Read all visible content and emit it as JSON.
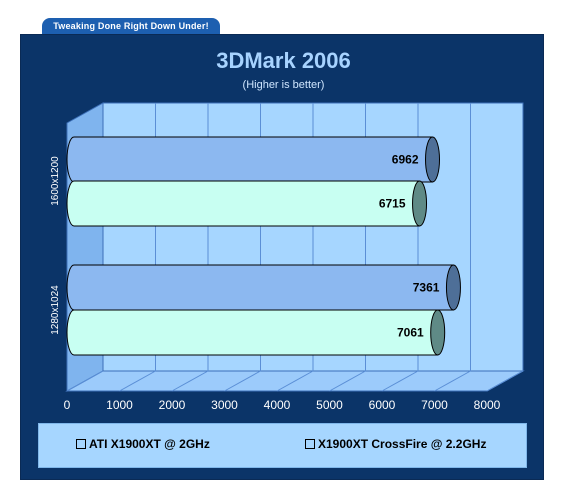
{
  "header": {
    "tab_label": "Tweaking Done Right Down Under!"
  },
  "colors": {
    "panel": "#0b3468",
    "plot_wall": "#a6d6ff",
    "series1": "#8cb8f0",
    "series2": "#c8fff2",
    "gridline": "#5b8fd6"
  },
  "chart_data": {
    "type": "bar",
    "orientation": "horizontal",
    "title": "3DMark 2006",
    "subtitle": "(Higher is better)",
    "categories": [
      "1600x1200",
      "1280x1024"
    ],
    "series": [
      {
        "name": "ATI X1900XT @ 2GHz",
        "values": [
          6962,
          7361
        ]
      },
      {
        "name": "X1900XT CrossFire @ 2.2GHz",
        "values": [
          6715,
          7061
        ]
      }
    ],
    "xlim": [
      0,
      8000
    ],
    "xticks": [
      "0",
      "1000",
      "2000",
      "3000",
      "4000",
      "5000",
      "6000",
      "7000",
      "8000"
    ],
    "grid": true,
    "legend_position": "bottom"
  }
}
